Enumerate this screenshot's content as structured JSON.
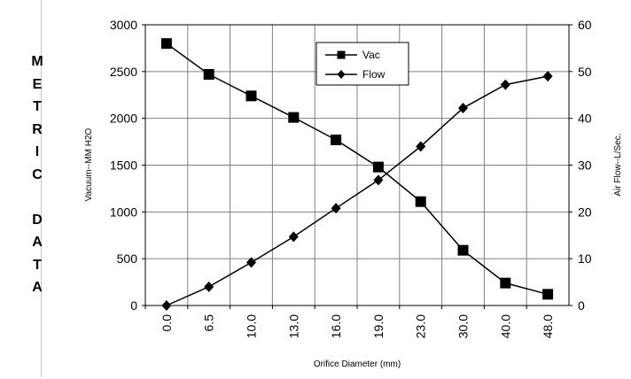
{
  "side_label": "METRIC DATA",
  "chart_data": {
    "type": "line",
    "categories": [
      "0.0",
      "6.5",
      "10.0",
      "13.0",
      "16.0",
      "19.0",
      "23.0",
      "30.0",
      "40.0",
      "48.0"
    ],
    "series": [
      {
        "name": "Vac",
        "axis": "left",
        "marker": "square",
        "values": [
          2800,
          2470,
          2240,
          2010,
          1770,
          1480,
          1110,
          590,
          240,
          120
        ]
      },
      {
        "name": "Flow",
        "axis": "right",
        "marker": "diamond",
        "values": [
          0,
          4,
          9.2,
          14.7,
          20.8,
          26.8,
          34,
          42.2,
          47.2,
          49
        ]
      }
    ],
    "xlabel": "Orifice Diameter (mm)",
    "ylabel": "Vacuum--MM H2O",
    "y2label": "Air Flow--L/Sec.",
    "ylim": [
      0,
      3000
    ],
    "yticks": [
      0,
      500,
      1000,
      1500,
      2000,
      2500,
      3000
    ],
    "y2lim": [
      0,
      60
    ],
    "y2ticks": [
      0,
      10,
      20,
      30,
      40,
      50,
      60
    ],
    "grid": true,
    "legend_position": "top-center"
  }
}
